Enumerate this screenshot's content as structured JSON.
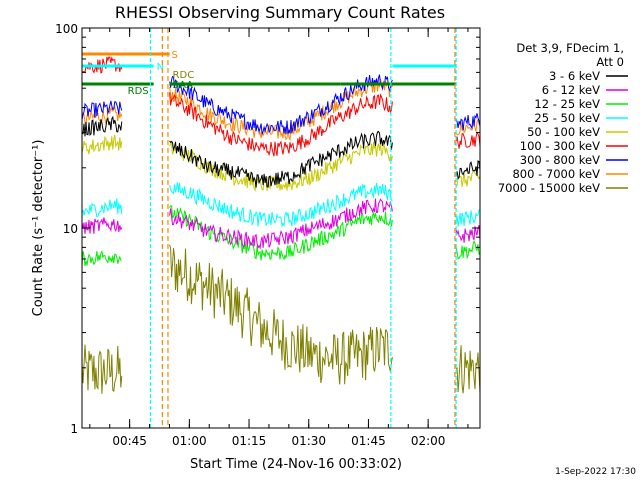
{
  "chart_data": {
    "type": "line",
    "title": "RHESSI Observing Summary Count Rates",
    "xlabel": "Start Time (24-Nov-16 00:33:02)",
    "ylabel": "Count Rate (s⁻¹ detector⁻¹)",
    "y_scale": "log",
    "ylim": [
      1,
      100
    ],
    "xlim_minutes": [
      0,
      100
    ],
    "x_ticks": [
      {
        "label": "00:45",
        "minute": 11.97
      },
      {
        "label": "01:00",
        "minute": 26.97
      },
      {
        "label": "01:15",
        "minute": 41.97
      },
      {
        "label": "01:30",
        "minute": 56.97
      },
      {
        "label": "01:45",
        "minute": 71.97
      },
      {
        "label": "02:00",
        "minute": 86.97
      }
    ],
    "y_ticks": [
      {
        "label": "1",
        "value": 1
      },
      {
        "label": "10",
        "value": 10
      },
      {
        "label": "100",
        "value": 100
      }
    ],
    "legend_header": [
      "Det 3,9, FDecim 1,",
      "Att 0"
    ],
    "legend_placement": "right",
    "series": [
      {
        "name": "3 - 6 keV",
        "color": "#000000",
        "points": [
          [
            0,
            31
          ],
          [
            8,
            33
          ],
          [
            20,
            28
          ],
          [
            22,
            26
          ],
          [
            27,
            23
          ],
          [
            32,
            20
          ],
          [
            38,
            19
          ],
          [
            45,
            17
          ],
          [
            52,
            18
          ],
          [
            58,
            21
          ],
          [
            64,
            24
          ],
          [
            70,
            27
          ],
          [
            75,
            28
          ],
          [
            80,
            25
          ],
          [
            85,
            22
          ],
          [
            88,
            20
          ],
          [
            94,
            19
          ],
          [
            100,
            20
          ]
        ]
      },
      {
        "name": "6 - 12 keV",
        "color": "#e000e0",
        "points": [
          [
            0,
            10
          ],
          [
            8,
            10.5
          ],
          [
            20,
            9
          ],
          [
            22,
            11.5
          ],
          [
            27,
            10.5
          ],
          [
            32,
            9.5
          ],
          [
            38,
            9
          ],
          [
            45,
            8.5
          ],
          [
            52,
            9
          ],
          [
            58,
            10
          ],
          [
            64,
            11
          ],
          [
            70,
            12.5
          ],
          [
            75,
            13
          ],
          [
            80,
            12
          ],
          [
            85,
            10.5
          ],
          [
            88,
            9.5
          ],
          [
            94,
            9
          ],
          [
            100,
            9.5
          ]
        ]
      },
      {
        "name": "12 - 25 keV",
        "color": "#00ee00",
        "points": [
          [
            0,
            7
          ],
          [
            8,
            7.3
          ],
          [
            20,
            6.5
          ],
          [
            22,
            12
          ],
          [
            27,
            11
          ],
          [
            32,
            9.5
          ],
          [
            38,
            8.5
          ],
          [
            45,
            7.5
          ],
          [
            52,
            7.5
          ],
          [
            58,
            8.5
          ],
          [
            64,
            9.5
          ],
          [
            70,
            11
          ],
          [
            75,
            11.5
          ],
          [
            80,
            10.5
          ],
          [
            85,
            9
          ],
          [
            88,
            8
          ],
          [
            94,
            7.5
          ],
          [
            100,
            8
          ]
        ]
      },
      {
        "name": "25 - 50 keV",
        "color": "#00ffff",
        "points": [
          [
            0,
            12
          ],
          [
            8,
            13
          ],
          [
            20,
            11
          ],
          [
            22,
            16
          ],
          [
            27,
            15
          ],
          [
            32,
            13.5
          ],
          [
            38,
            12
          ],
          [
            45,
            11
          ],
          [
            52,
            11
          ],
          [
            58,
            12
          ],
          [
            64,
            13.5
          ],
          [
            70,
            15
          ],
          [
            75,
            15.5
          ],
          [
            80,
            14
          ],
          [
            85,
            12.5
          ],
          [
            88,
            11.5
          ],
          [
            94,
            11
          ],
          [
            100,
            11.5
          ]
        ]
      },
      {
        "name": "50 - 100 keV",
        "color": "#c8c800",
        "points": [
          [
            0,
            25
          ],
          [
            8,
            27
          ],
          [
            20,
            22
          ],
          [
            22,
            25
          ],
          [
            27,
            23
          ],
          [
            32,
            20
          ],
          [
            38,
            18
          ],
          [
            45,
            16.5
          ],
          [
            52,
            16.5
          ],
          [
            58,
            18
          ],
          [
            64,
            21
          ],
          [
            70,
            24
          ],
          [
            75,
            25
          ],
          [
            80,
            22
          ],
          [
            85,
            19
          ],
          [
            88,
            17.5
          ],
          [
            94,
            17
          ],
          [
            100,
            18
          ]
        ]
      },
      {
        "name": "100 - 300 keV",
        "color": "#ff0000",
        "points": [
          [
            0,
            64
          ],
          [
            8,
            66
          ],
          [
            20,
            58
          ],
          [
            22,
            44
          ],
          [
            27,
            39
          ],
          [
            32,
            33
          ],
          [
            38,
            28
          ],
          [
            45,
            25
          ],
          [
            52,
            25
          ],
          [
            58,
            29
          ],
          [
            64,
            35
          ],
          [
            70,
            41
          ],
          [
            75,
            43
          ],
          [
            80,
            38
          ],
          [
            85,
            31
          ],
          [
            88,
            28
          ],
          [
            94,
            27
          ],
          [
            100,
            28
          ]
        ]
      },
      {
        "name": "300 - 800 keV",
        "color": "#0000ff",
        "points": [
          [
            0,
            38
          ],
          [
            8,
            40
          ],
          [
            20,
            34
          ],
          [
            22,
            54
          ],
          [
            27,
            48
          ],
          [
            32,
            41
          ],
          [
            38,
            36
          ],
          [
            45,
            32
          ],
          [
            52,
            32
          ],
          [
            58,
            37
          ],
          [
            64,
            44
          ],
          [
            70,
            52
          ],
          [
            75,
            55
          ],
          [
            80,
            48
          ],
          [
            85,
            40
          ],
          [
            88,
            35
          ],
          [
            94,
            33
          ],
          [
            100,
            35
          ]
        ]
      },
      {
        "name": "800 - 7000 keV",
        "color": "#ff8800",
        "points": [
          [
            0,
            35
          ],
          [
            8,
            37
          ],
          [
            20,
            32
          ],
          [
            22,
            47
          ],
          [
            27,
            43
          ],
          [
            32,
            37
          ],
          [
            38,
            33
          ],
          [
            45,
            30
          ],
          [
            52,
            30
          ],
          [
            58,
            35
          ],
          [
            64,
            42
          ],
          [
            70,
            49
          ],
          [
            75,
            52
          ],
          [
            80,
            46
          ],
          [
            85,
            38
          ],
          [
            88,
            33
          ],
          [
            94,
            31
          ],
          [
            100,
            33
          ]
        ]
      },
      {
        "name": "7000 - 15000 keV",
        "color": "#808000",
        "points": [
          [
            0,
            1.9
          ],
          [
            8,
            1.9
          ],
          [
            20,
            1.9
          ],
          [
            22,
            6.5
          ],
          [
            27,
            5.8
          ],
          [
            32,
            5
          ],
          [
            38,
            4.2
          ],
          [
            45,
            3.2
          ],
          [
            52,
            2.6
          ],
          [
            58,
            2.3
          ],
          [
            64,
            2.2
          ],
          [
            70,
            2.3
          ],
          [
            75,
            2.5
          ],
          [
            80,
            2.5
          ],
          [
            85,
            2.3
          ],
          [
            88,
            2.1
          ],
          [
            94,
            2
          ],
          [
            100,
            2
          ]
        ]
      }
    ],
    "gaps_minutes": [
      [
        10,
        22
      ],
      [
        78,
        94
      ]
    ],
    "flags": [
      {
        "label": "S",
        "color": "#ff8800",
        "level": 0.935,
        "segments": [
          [
            0,
            22
          ]
        ]
      },
      {
        "label": "N",
        "color": "#00ffff",
        "level": 0.905,
        "segments": [
          [
            0,
            18
          ],
          [
            78,
            94
          ]
        ]
      },
      {
        "label": "RDC",
        "color": "#808000",
        "level": 0.87,
        "segments": []
      },
      {
        "label": "RDS",
        "color": "#008000",
        "level": 0.86,
        "segments": [
          [
            22,
            65
          ]
        ]
      },
      {
        "label": "SAA",
        "color": "#008000",
        "level": 0.86,
        "segments": [
          [
            0,
            18
          ],
          [
            65,
            94
          ]
        ]
      }
    ],
    "markers": [
      {
        "color": "#00ffff",
        "minute": 17.2
      },
      {
        "color": "#ff8800",
        "minute": 20.2
      },
      {
        "color": "#ff8800",
        "minute": 21.6
      },
      {
        "color": "#00ffff",
        "minute": 77.6
      },
      {
        "color": "#ff8800",
        "minute": 93.7
      },
      {
        "color": "#00ffff",
        "minute": 94.0
      }
    ],
    "footer": "1-Sep-2022 17:30",
    "grid": false
  }
}
